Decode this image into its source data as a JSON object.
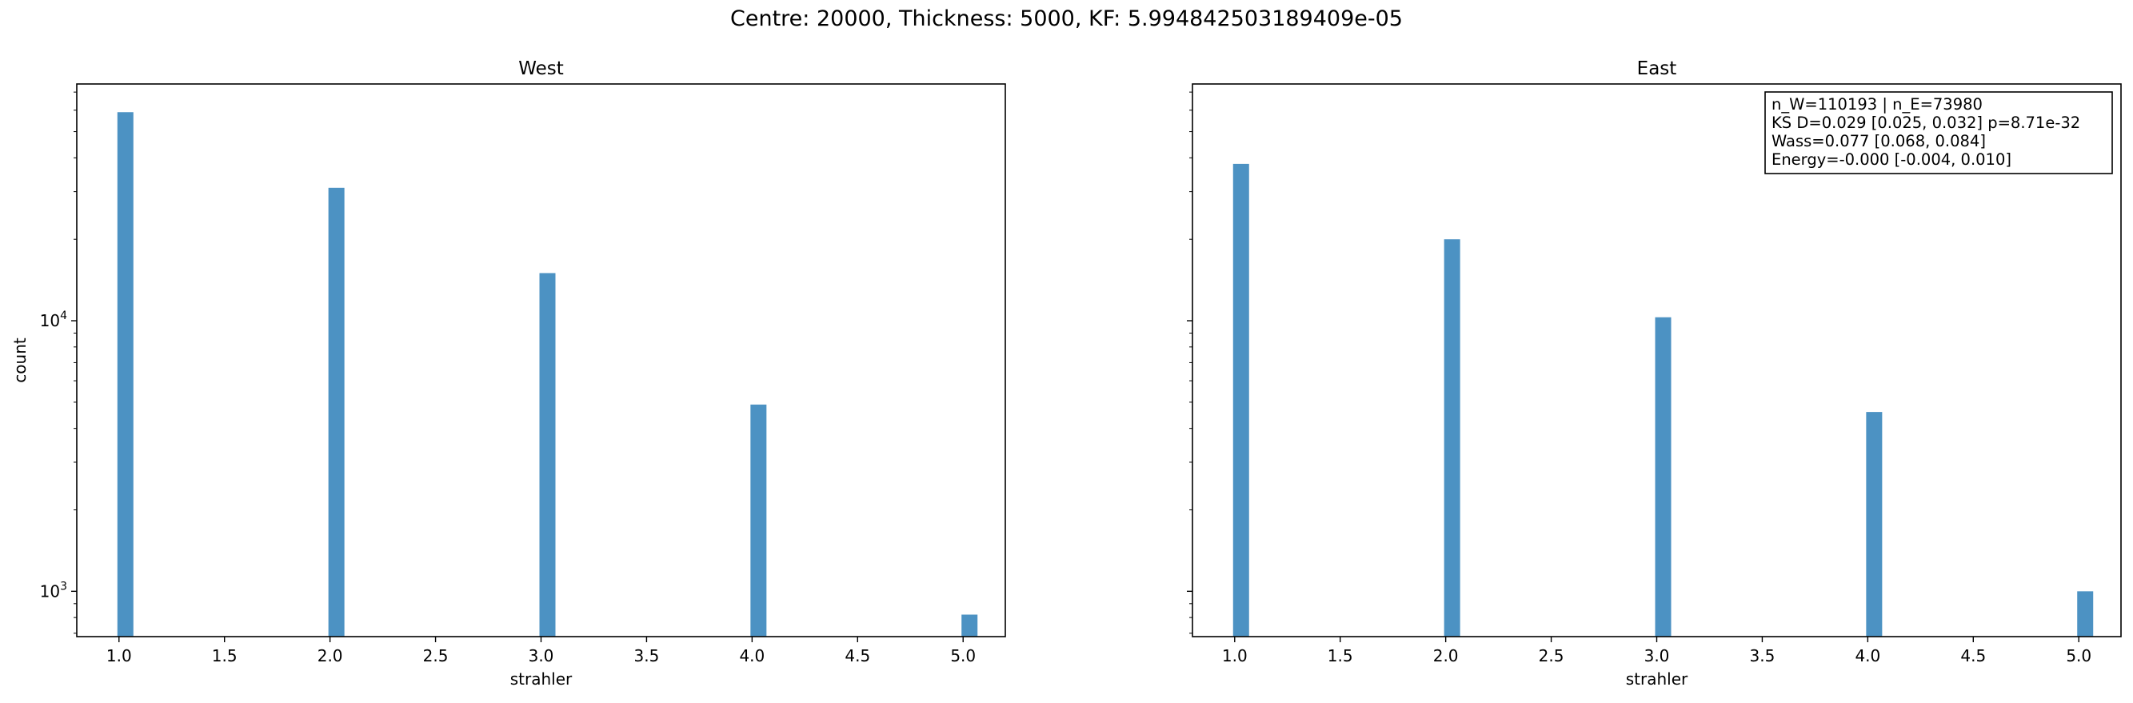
{
  "suptitle": "Centre: 20000, Thickness: 5000, KF: 5.994842503189409e-05",
  "colors": {
    "bar": "#4c92c3",
    "axis": "#000000"
  },
  "chart_data": [
    {
      "type": "bar",
      "title": "West",
      "xlabel": "strahler",
      "ylabel": "count",
      "yscale": "log",
      "x": [
        1,
        2,
        3,
        4,
        5
      ],
      "values": [
        59000,
        31000,
        15000,
        4900,
        820
      ],
      "xlim": [
        0.8,
        5.2
      ],
      "ylim": [
        680,
        75000
      ],
      "xticks": [
        "1.0",
        "1.5",
        "2.0",
        "2.5",
        "3.0",
        "3.5",
        "4.0",
        "4.5",
        "5.0"
      ],
      "yticks_labeled": [
        {
          "base": "10",
          "exp": "3",
          "value": 1000
        },
        {
          "base": "10",
          "exp": "4",
          "value": 10000
        }
      ],
      "grid": false
    },
    {
      "type": "bar",
      "title": "East",
      "xlabel": "strahler",
      "ylabel": "",
      "yscale": "log",
      "x": [
        1,
        2,
        3,
        4,
        5
      ],
      "values": [
        38000,
        20000,
        10300,
        4600,
        1000
      ],
      "xlim": [
        0.8,
        5.2
      ],
      "ylim": [
        680,
        75000
      ],
      "xticks": [
        "1.0",
        "1.5",
        "2.0",
        "2.5",
        "3.0",
        "3.5",
        "4.0",
        "4.5",
        "5.0"
      ],
      "yticks_labeled": [],
      "grid": false,
      "annotation": [
        "n_W=110193 | n_E=73980",
        "KS D=0.029 [0.025, 0.032]  p=8.71e-32",
        "Wass=0.077 [0.068, 0.084]",
        "Energy=-0.000 [-0.004, 0.010]"
      ],
      "annotation_placement": "top-right"
    }
  ]
}
